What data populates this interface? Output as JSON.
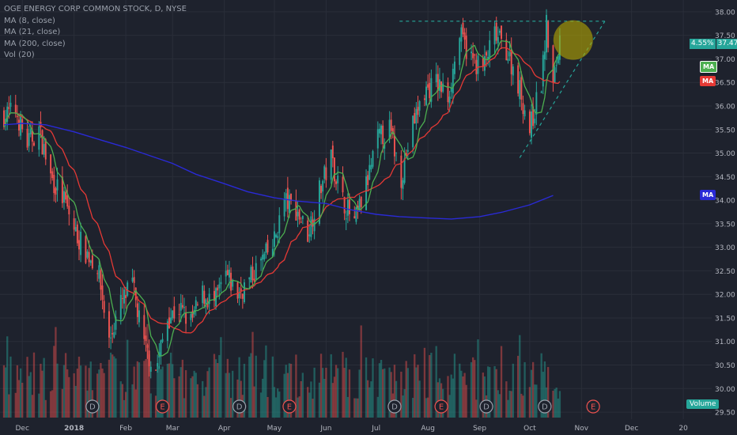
{
  "chart_data": {
    "type": "candlestick",
    "title": "OGE ENERGY CORP COMMON STOCK, D, NYSE",
    "legend": [
      "MA (8, close)",
      "MA (21, close)",
      "MA (200, close)",
      "Vol (20)"
    ],
    "x_ticks": [
      "Dec",
      "2018",
      "Feb",
      "Mar",
      "Apr",
      "May",
      "Jun",
      "Jul",
      "Aug",
      "Sep",
      "Oct",
      "Nov",
      "Dec",
      "20"
    ],
    "y_ticks": [
      "29.50",
      "30.00",
      "30.50",
      "31.00",
      "31.50",
      "32.00",
      "32.50",
      "33.00",
      "33.50",
      "34.00",
      "34.50",
      "35.00",
      "35.50",
      "36.00",
      "36.50",
      "37.00",
      "37.50",
      "38.00"
    ],
    "ylim": [
      29.35,
      38.25
    ],
    "last_price": "37.47",
    "change_pct": "4.55%",
    "ma_badges": [
      "MA",
      "MA",
      "MA"
    ],
    "volume_label": "Volume",
    "events": [
      "D",
      "E",
      "D",
      "E",
      "D",
      "E",
      "D",
      "D",
      "E"
    ],
    "ma200": [
      {
        "x": "2017-11-20",
        "y": 35.6
      },
      {
        "x": "2017-12-01",
        "y": 35.63
      },
      {
        "x": "2017-12-15",
        "y": 35.6
      },
      {
        "x": "2018-01-01",
        "y": 35.45
      },
      {
        "x": "2018-01-15",
        "y": 35.3
      },
      {
        "x": "2018-02-01",
        "y": 35.12
      },
      {
        "x": "2018-02-15",
        "y": 34.95
      },
      {
        "x": "2018-03-01",
        "y": 34.78
      },
      {
        "x": "2018-03-15",
        "y": 34.55
      },
      {
        "x": "2018-04-01",
        "y": 34.35
      },
      {
        "x": "2018-04-15",
        "y": 34.18
      },
      {
        "x": "2018-05-01",
        "y": 34.05
      },
      {
        "x": "2018-05-15",
        "y": 33.98
      },
      {
        "x": "2018-06-01",
        "y": 33.93
      },
      {
        "x": "2018-06-15",
        "y": 33.8
      },
      {
        "x": "2018-07-01",
        "y": 33.7
      },
      {
        "x": "2018-07-15",
        "y": 33.65
      },
      {
        "x": "2018-08-01",
        "y": 33.62
      },
      {
        "x": "2018-08-15",
        "y": 33.6
      },
      {
        "x": "2018-09-01",
        "y": 33.65
      },
      {
        "x": "2018-09-15",
        "y": 33.75
      },
      {
        "x": "2018-10-01",
        "y": 33.9
      },
      {
        "x": "2018-10-15",
        "y": 34.1
      }
    ],
    "price_path": [
      {
        "x": "2017-11-20",
        "y": 35.8
      },
      {
        "x": "2017-11-27",
        "y": 35.9
      },
      {
        "x": "2017-12-04",
        "y": 35.2
      },
      {
        "x": "2017-12-11",
        "y": 35.5
      },
      {
        "x": "2017-12-18",
        "y": 34.5
      },
      {
        "x": "2017-12-26",
        "y": 34.0
      },
      {
        "x": "2018-01-02",
        "y": 33.3
      },
      {
        "x": "2018-01-08",
        "y": 32.9
      },
      {
        "x": "2018-01-15",
        "y": 32.6
      },
      {
        "x": "2018-01-22",
        "y": 31.0
      },
      {
        "x": "2018-01-29",
        "y": 31.8
      },
      {
        "x": "2018-02-05",
        "y": 32.2
      },
      {
        "x": "2018-02-12",
        "y": 30.9
      },
      {
        "x": "2018-02-19",
        "y": 30.4
      },
      {
        "x": "2018-02-26",
        "y": 31.5
      },
      {
        "x": "2018-03-05",
        "y": 31.7
      },
      {
        "x": "2018-03-12",
        "y": 31.4
      },
      {
        "x": "2018-03-19",
        "y": 32.0
      },
      {
        "x": "2018-03-26",
        "y": 31.8
      },
      {
        "x": "2018-04-02",
        "y": 32.4
      },
      {
        "x": "2018-04-09",
        "y": 32.0
      },
      {
        "x": "2018-04-16",
        "y": 32.3
      },
      {
        "x": "2018-04-23",
        "y": 32.7
      },
      {
        "x": "2018-04-30",
        "y": 33.0
      },
      {
        "x": "2018-05-07",
        "y": 34.0
      },
      {
        "x": "2018-05-14",
        "y": 33.8
      },
      {
        "x": "2018-05-21",
        "y": 33.3
      },
      {
        "x": "2018-05-28",
        "y": 34.2
      },
      {
        "x": "2018-06-04",
        "y": 34.9
      },
      {
        "x": "2018-06-11",
        "y": 34.0
      },
      {
        "x": "2018-06-18",
        "y": 33.5
      },
      {
        "x": "2018-06-25",
        "y": 34.3
      },
      {
        "x": "2018-07-02",
        "y": 35.3
      },
      {
        "x": "2018-07-09",
        "y": 35.5
      },
      {
        "x": "2018-07-16",
        "y": 34.5
      },
      {
        "x": "2018-07-23",
        "y": 35.6
      },
      {
        "x": "2018-07-30",
        "y": 36.3
      },
      {
        "x": "2018-08-06",
        "y": 36.5
      },
      {
        "x": "2018-08-13",
        "y": 36.2
      },
      {
        "x": "2018-08-20",
        "y": 37.5
      },
      {
        "x": "2018-08-27",
        "y": 37.0
      },
      {
        "x": "2018-09-03",
        "y": 36.8
      },
      {
        "x": "2018-09-10",
        "y": 37.5
      },
      {
        "x": "2018-09-17",
        "y": 37.2
      },
      {
        "x": "2018-09-24",
        "y": 36.5
      },
      {
        "x": "2018-10-01",
        "y": 35.5
      },
      {
        "x": "2018-10-08",
        "y": 36.5
      },
      {
        "x": "2018-10-11",
        "y": 37.7
      },
      {
        "x": "2018-10-15",
        "y": 36.4
      },
      {
        "x": "2018-10-19",
        "y": 37.45
      }
    ],
    "annotations": [
      {
        "type": "hline-dashed",
        "y": 37.8,
        "x_start": "2018-07-15",
        "x_end": "2018-11-15"
      },
      {
        "type": "trendline-dashed",
        "from": {
          "x": "2018-09-25",
          "y": 34.9
        },
        "to": {
          "x": "2018-11-15",
          "y": 37.8
        }
      },
      {
        "type": "circle-highlight",
        "x": "2018-10-27",
        "y": 37.4
      }
    ]
  },
  "colors": {
    "background": "#1e222d",
    "up": "#26a69a",
    "down": "#ef5350",
    "ma8": "#4caf50",
    "ma21": "#e53935",
    "ma200": "#2a2ad6",
    "annotation": "#26a69a",
    "highlight": "#b5a800",
    "axis_text": "#b2b5be"
  }
}
